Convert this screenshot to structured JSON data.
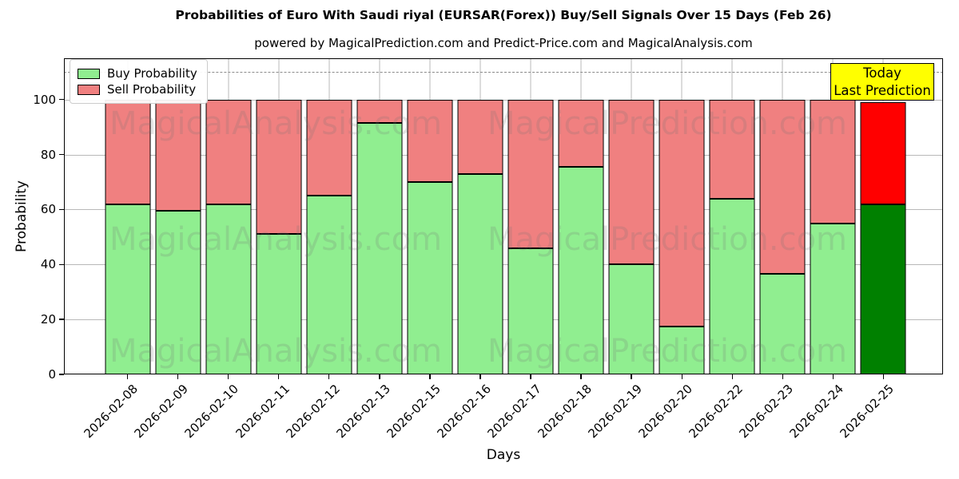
{
  "figure": {
    "title": "Probabilities of Euro With Saudi riyal (EURSAR(Forex)) Buy/Sell Signals Over 15 Days (Feb 26)",
    "subtitle": "powered by MagicalPrediction.com and Predict-Price.com and MagicalAnalysis.com"
  },
  "axes": {
    "xlabel": "Days",
    "ylabel": "Probability",
    "yticks": [
      0,
      20,
      40,
      60,
      80,
      100
    ],
    "ymax": 115,
    "dashed_guide_y": 110
  },
  "legend": {
    "items": [
      {
        "label": "Buy Probability",
        "color": "#90ee90"
      },
      {
        "label": "Sell Probability",
        "color": "#f08080"
      }
    ]
  },
  "annotation": {
    "line1": "Today",
    "line2": "Last Prediction",
    "bg_color": "#ffff00"
  },
  "watermarks": {
    "left": "MagicalAnalysis.com",
    "right": "MagicalPrediction.com"
  },
  "chart_data": {
    "type": "bar",
    "stacked": true,
    "title": "Probabilities of Euro With Saudi riyal (EURSAR(Forex)) Buy/Sell Signals Over 15 Days (Feb 26)",
    "xlabel": "Days",
    "ylabel": "Probability",
    "ylim": [
      0,
      115
    ],
    "grid": true,
    "legend_position": "upper left",
    "categories": [
      "2026-02-08",
      "2026-02-09",
      "2026-02-10",
      "2026-02-11",
      "2026-02-12",
      "2026-02-13",
      "2026-02-15",
      "2026-02-16",
      "2026-02-17",
      "2026-02-18",
      "2026-02-19",
      "2026-02-20",
      "2026-02-22",
      "2026-02-23",
      "2026-02-24",
      "2026-02-25"
    ],
    "series": [
      {
        "name": "Buy Probability",
        "color": "#90ee90",
        "values": [
          62,
          59.5,
          62,
          51,
          65,
          91.5,
          70,
          73,
          46,
          75.5,
          40,
          17.5,
          64,
          36.5,
          55,
          62
        ]
      },
      {
        "name": "Sell Probability",
        "color": "#f08080",
        "values": [
          38,
          40.5,
          38,
          49,
          35,
          8.5,
          30,
          27,
          54,
          24.5,
          60,
          82.5,
          36,
          63.5,
          45,
          37
        ]
      }
    ],
    "today_bar": {
      "index": 15,
      "buy_color": "#008000",
      "sell_color": "#ff0000"
    }
  }
}
